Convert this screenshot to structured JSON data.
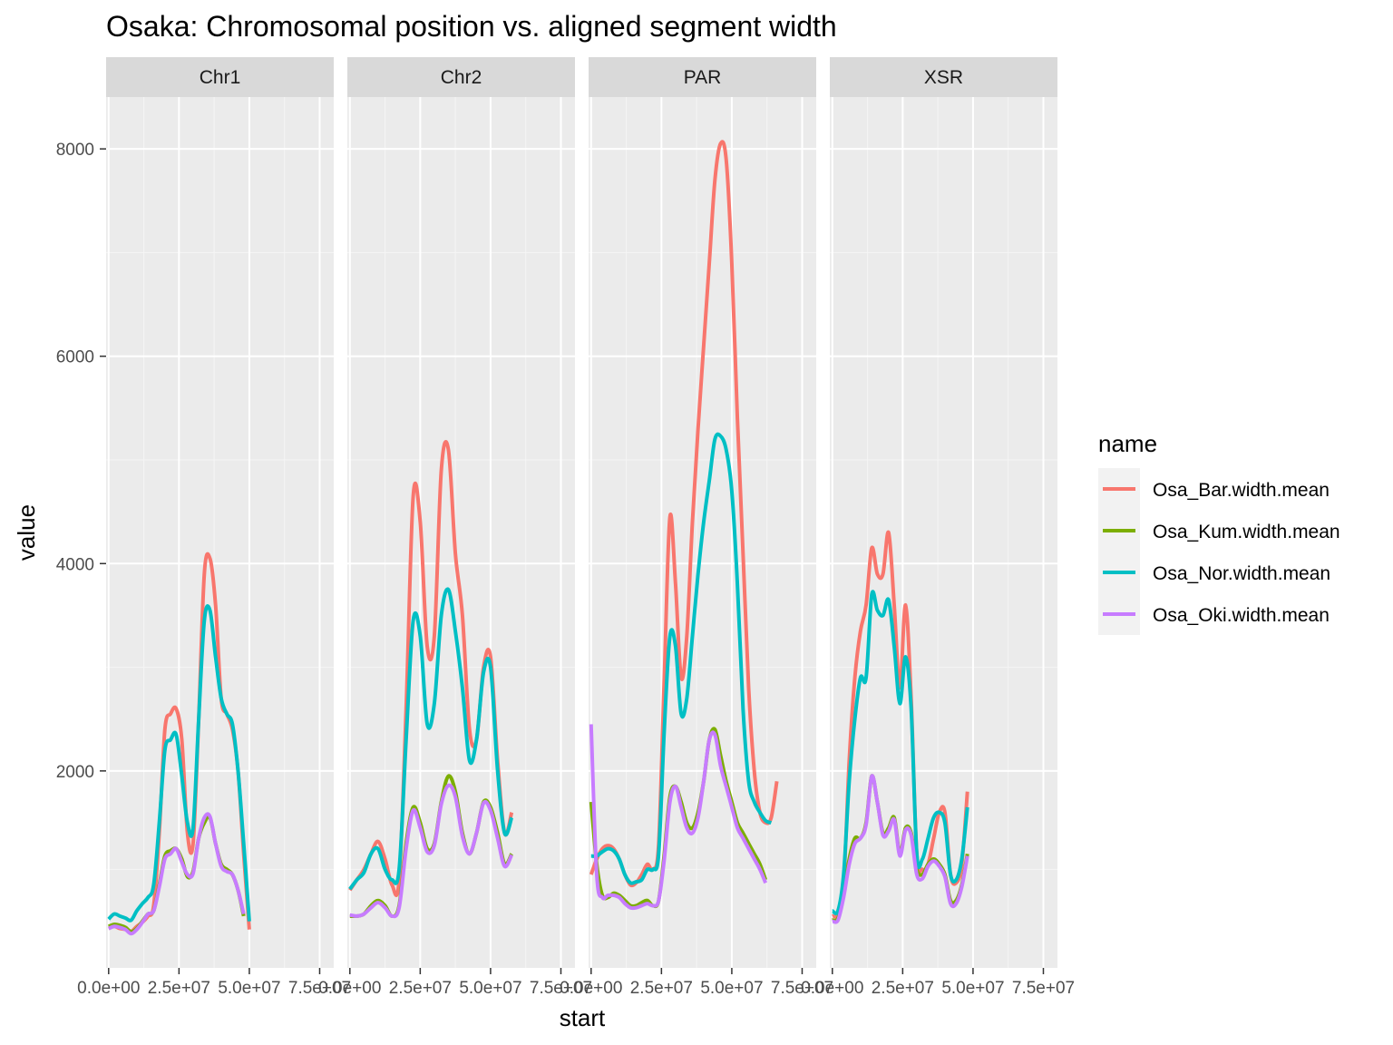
{
  "chart_data": {
    "type": "line",
    "title": "Osaka: Chromosomal position vs. aligned segment width",
    "xlabel": "start",
    "ylabel": "value",
    "xlim": [
      -900000,
      80000000
    ],
    "ylim": [
      100,
      8500
    ],
    "x_ticks": [
      0,
      25000000,
      50000000,
      75000000
    ],
    "x_tick_labels": [
      "0.0e+00",
      "2.5e+07",
      "5.0e+07",
      "7.5e+07"
    ],
    "y_ticks": [
      2000,
      4000,
      6000,
      8000
    ],
    "y_tick_labels": [
      "2000",
      "4000",
      "6000",
      "8000"
    ],
    "legend": {
      "title": "name",
      "position": "right"
    },
    "grid": true,
    "series_meta": [
      {
        "name": "Osa_Bar.width.mean",
        "color": "#F8766D"
      },
      {
        "name": "Osa_Kum.width.mean",
        "color": "#7CAE00"
      },
      {
        "name": "Osa_Nor.width.mean",
        "color": "#00BFC4"
      },
      {
        "name": "Osa_Oki.width.mean",
        "color": "#C77CFF"
      }
    ],
    "panels": [
      {
        "label": "Chr1",
        "x": [
          0,
          2000000,
          4000000,
          6000000,
          8000000,
          10000000,
          12000000,
          14000000,
          16000000,
          18000000,
          20000000,
          22000000,
          24000000,
          26000000,
          28000000,
          30000000,
          32000000,
          34000000,
          36000000,
          38000000,
          40000000,
          42000000,
          44000000,
          46000000,
          48000000,
          50000000,
          52000000,
          54000000,
          56000000,
          58000000,
          60000000,
          62000000
        ],
        "series": [
          {
            "name": "Osa_Bar.width.mean",
            "values": [
              480,
              500,
              480,
              470,
              450,
              500,
              540,
              600,
              700,
              1400,
              2400,
              2550,
              2600,
              2300,
              1400,
              1300,
              2500,
              3900,
              4050,
              3600,
              2700,
              2550,
              2400,
              2000,
              1200,
              470,
              null,
              null,
              null,
              null,
              null,
              null
            ]
          },
          {
            "name": "Osa_Kum.width.mean",
            "values": [
              500,
              520,
              510,
              490,
              450,
              480,
              550,
              620,
              650,
              900,
              1180,
              1230,
              1250,
              1150,
              980,
              1030,
              1350,
              1500,
              1550,
              1300,
              1100,
              1050,
              1000,
              850,
              600,
              null,
              null,
              null,
              null,
              null,
              null,
              null
            ]
          },
          {
            "name": "Osa_Nor.width.mean",
            "values": [
              570,
              620,
              600,
              580,
              560,
              650,
              720,
              780,
              900,
              1500,
              2200,
              2300,
              2350,
              1950,
              1500,
              1450,
              2500,
              3450,
              3550,
              3100,
              2700,
              2550,
              2450,
              2000,
              1300,
              550,
              null,
              null,
              null,
              null,
              null,
              null
            ]
          },
          {
            "name": "Osa_Oki.width.mean",
            "values": [
              480,
              500,
              490,
              470,
              430,
              470,
              540,
              620,
              650,
              880,
              1150,
              1200,
              1250,
              1120,
              1000,
              1010,
              1350,
              1550,
              1560,
              1300,
              1080,
              1030,
              1000,
              850,
              620,
              null,
              null,
              null,
              null,
              null,
              null,
              null
            ]
          }
        ]
      },
      {
        "label": "Chr2",
        "x": [
          0,
          2500000,
          5000000,
          7500000,
          10000000,
          12500000,
          15000000,
          17500000,
          20000000,
          22500000,
          25000000,
          27500000,
          30000000,
          32500000,
          35000000,
          37500000,
          40000000,
          42500000,
          45000000,
          47500000,
          50000000,
          52500000,
          55000000,
          57500000,
          60000000,
          62500000,
          65000000,
          67500000
        ],
        "series": [
          {
            "name": "Osa_Bar.width.mean",
            "values": [
              850,
              950,
              1050,
              1200,
              1320,
              1150,
              900,
              950,
              2600,
              4650,
              4400,
              3200,
              3300,
              4900,
              5100,
              4100,
              3500,
              2400,
              2300,
              3000,
              3100,
              2100,
              1400,
              1600,
              null,
              null,
              null,
              null
            ]
          },
          {
            "name": "Osa_Kum.width.mean",
            "values": [
              600,
              600,
              620,
              700,
              750,
              700,
              600,
              700,
              1300,
              1650,
              1500,
              1250,
              1300,
              1700,
              1950,
              1800,
              1400,
              1200,
              1400,
              1700,
              1650,
              1400,
              1100,
              1200,
              null,
              null,
              null,
              null
            ]
          },
          {
            "name": "Osa_Nor.width.mean",
            "values": [
              860,
              950,
              1020,
              1200,
              1250,
              1050,
              950,
              1050,
              2300,
              3450,
              3300,
              2450,
              2650,
              3500,
              3750,
              3350,
              2800,
              2100,
              2300,
              2950,
              3000,
              2000,
              1400,
              1550,
              null,
              null,
              null,
              null
            ]
          },
          {
            "name": "Osa_Oki.width.mean",
            "values": [
              610,
              600,
              620,
              680,
              730,
              680,
              600,
              680,
              1250,
              1620,
              1450,
              1220,
              1280,
              1680,
              1860,
              1750,
              1370,
              1200,
              1400,
              1690,
              1620,
              1350,
              1080,
              1190,
              null,
              null,
              null,
              null
            ]
          }
        ]
      },
      {
        "label": "PAR",
        "x": [
          0,
          2000000,
          4000000,
          6000000,
          8000000,
          10000000,
          12000000,
          14000000,
          16000000,
          18000000,
          20000000,
          22000000,
          24000000,
          26000000,
          28000000,
          30000000,
          32000000,
          34000000,
          36000000,
          38000000,
          40000000,
          42000000,
          44000000,
          46000000,
          48000000,
          50000000,
          52000000,
          54000000,
          56000000,
          58000000,
          60000000,
          62000000,
          64000000,
          66000000,
          68000000,
          70000000,
          72000000,
          74000000,
          76000000,
          78000000
        ],
        "series": [
          {
            "name": "Osa_Bar.width.mean",
            "values": [
              1000,
              1150,
              1250,
              1280,
              1250,
              1150,
              1000,
              900,
              920,
              1000,
              1100,
              1050,
              1300,
              2900,
              4450,
              3800,
              2900,
              3300,
              4400,
              5300,
              6100,
              6900,
              7700,
              8050,
              7900,
              6900,
              5400,
              4100,
              2800,
              2000,
              1600,
              1500,
              1550,
              1900,
              null,
              null,
              null,
              null,
              null,
              null
            ]
          },
          {
            "name": "Osa_Kum.width.mean",
            "values": [
              1700,
              1100,
              800,
              780,
              820,
              800,
              750,
              700,
              700,
              730,
              750,
              700,
              750,
              1200,
              1750,
              1850,
              1700,
              1500,
              1450,
              1600,
              1900,
              2300,
              2400,
              2150,
              1900,
              1700,
              1500,
              1400,
              1300,
              1200,
              1100,
              950,
              null,
              null,
              null,
              null,
              null,
              null,
              null,
              null
            ]
          },
          {
            "name": "Osa_Nor.width.mean",
            "values": [
              1180,
              1180,
              1220,
              1250,
              1230,
              1150,
              1000,
              920,
              930,
              950,
              1050,
              1050,
              1200,
              2400,
              3300,
              3200,
              2550,
              2700,
              3300,
              3900,
              4400,
              4800,
              5200,
              5230,
              5100,
              4700,
              3800,
              2600,
              1900,
              1700,
              1600,
              1520,
              1500,
              null,
              null,
              null,
              null,
              null,
              null,
              null
            ]
          },
          {
            "name": "Osa_Oki.width.mean",
            "values": [
              2450,
              1000,
              780,
              800,
              800,
              780,
              720,
              680,
              680,
              700,
              720,
              700,
              750,
              1150,
              1700,
              1850,
              1650,
              1450,
              1400,
              1550,
              1900,
              2300,
              2350,
              2050,
              1850,
              1650,
              1450,
              1350,
              1250,
              1150,
              1050,
              920,
              null,
              null,
              null,
              null,
              null,
              null,
              null,
              null
            ]
          }
        ]
      },
      {
        "label": "XSR",
        "x": [
          0,
          2000000,
          4000000,
          6000000,
          8000000,
          10000000,
          12000000,
          14000000,
          16000000,
          18000000,
          20000000,
          22000000,
          24000000,
          26000000,
          28000000,
          30000000,
          32000000,
          34000000,
          36000000,
          38000000,
          40000000,
          42000000,
          44000000,
          46000000,
          48000000,
          50000000,
          52000000,
          54000000,
          56000000,
          58000000
        ],
        "series": [
          {
            "name": "Osa_Bar.width.mean",
            "values": [
              600,
              620,
              900,
              2100,
              2900,
              3350,
              3600,
              4150,
              3900,
              3900,
              4300,
              3600,
              2800,
              3600,
              2700,
              1200,
              1050,
              1100,
              1350,
              1600,
              1600,
              1000,
              920,
              1100,
              1800,
              null,
              null,
              null,
              null,
              null
            ]
          },
          {
            "name": "Osa_Kum.width.mean",
            "values": [
              560,
              580,
              800,
              1150,
              1350,
              1350,
              1500,
              1950,
              1700,
              1400,
              1450,
              1550,
              1200,
              1450,
              1400,
              1050,
              1000,
              1100,
              1150,
              1100,
              1000,
              750,
              750,
              900,
              1200,
              null,
              null,
              null,
              null,
              null
            ]
          },
          {
            "name": "Osa_Nor.width.mean",
            "values": [
              650,
              650,
              1000,
              1900,
              2500,
              2900,
              2900,
              3700,
              3550,
              3500,
              3650,
              3200,
              2650,
              3100,
              2600,
              1200,
              1150,
              1350,
              1550,
              1600,
              1500,
              1000,
              950,
              1150,
              1650,
              null,
              null,
              null,
              null,
              null
            ]
          },
          {
            "name": "Osa_Oki.width.mean",
            "values": [
              550,
              560,
              780,
              1100,
              1300,
              1350,
              1480,
              1950,
              1700,
              1380,
              1420,
              1530,
              1180,
              1430,
              1380,
              1000,
              960,
              1080,
              1130,
              1080,
              980,
              720,
              720,
              880,
              1180,
              null,
              null,
              null,
              null,
              null
            ]
          }
        ]
      }
    ]
  }
}
